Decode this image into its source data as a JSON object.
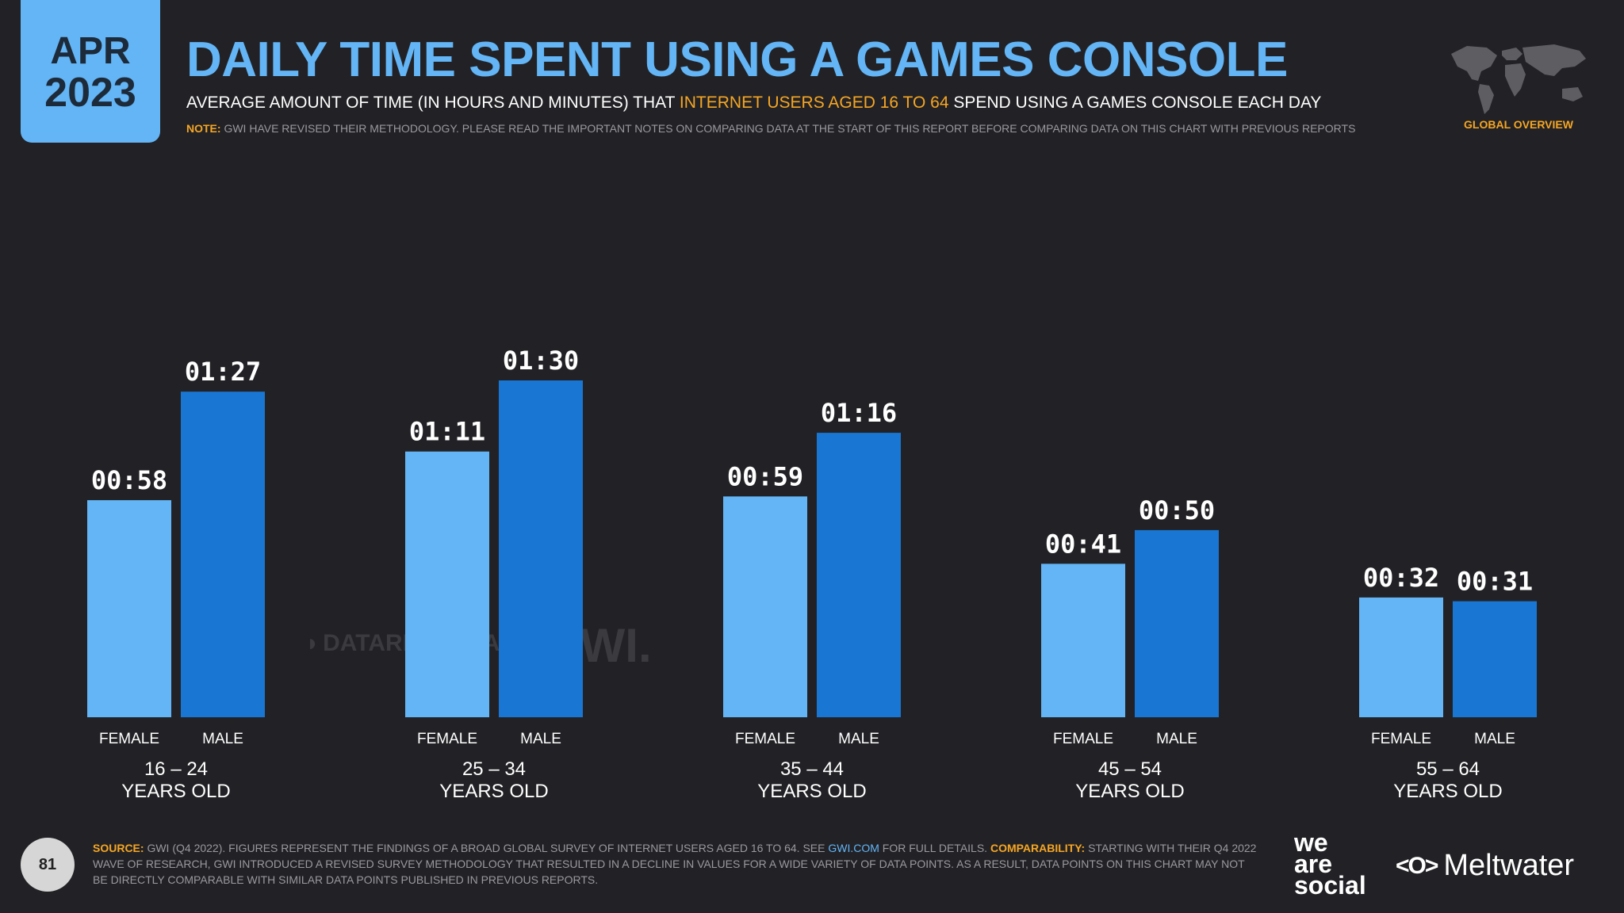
{
  "badge": {
    "month": "APR",
    "year": "2023"
  },
  "header": {
    "title": "DAILY TIME SPENT USING A GAMES CONSOLE",
    "subtitle_pre": "AVERAGE AMOUNT OF TIME (IN HOURS AND MINUTES) THAT ",
    "subtitle_highlight": "INTERNET USERS AGED 16 TO 64",
    "subtitle_post": " SPEND USING A GAMES CONSOLE EACH DAY",
    "note_label": "NOTE:",
    "note_text": "GWI HAVE REVISED THEIR METHODOLOGY. PLEASE READ THE IMPORTANT NOTES ON COMPARING DATA AT THE START OF THIS REPORT BEFORE COMPARING DATA ON THIS CHART WITH PREVIOUS REPORTS"
  },
  "region_label": "GLOBAL OVERVIEW",
  "watermark": {
    "datareportal": "DATAREPORTAL",
    "gwi": "GWI."
  },
  "chart_data": {
    "type": "bar",
    "title": "DAILY TIME SPENT USING A GAMES CONSOLE",
    "unit": "minutes",
    "categories": [
      "16 – 24|YEARS OLD",
      "25 – 34|YEARS OLD",
      "35 – 44|YEARS OLD",
      "45 – 54|YEARS OLD",
      "55 – 64|YEARS OLD"
    ],
    "series": [
      {
        "name": "FEMALE",
        "color": "#63b5f5",
        "values": [
          58,
          71,
          59,
          41,
          32
        ],
        "labels": [
          "00:58",
          "01:11",
          "00:59",
          "00:41",
          "00:32"
        ]
      },
      {
        "name": "MALE",
        "color": "#1976d2",
        "values": [
          87,
          90,
          76,
          50,
          31
        ],
        "labels": [
          "01:27",
          "01:30",
          "01:16",
          "00:50",
          "00:31"
        ]
      }
    ],
    "ylim": [
      0,
      90
    ],
    "grid": false,
    "legend": "none"
  },
  "footer": {
    "page_number": "81",
    "source_label": "SOURCE:",
    "source_text": " GWI (Q4 2022). FIGURES REPRESENT THE FINDINGS OF A BROAD GLOBAL SURVEY OF INTERNET USERS AGED 16 TO 64. SEE ",
    "source_link": "GWI.COM",
    "source_text2": " FOR FULL DETAILS. ",
    "comparability_label": "COMPARABILITY:",
    "comparability_text": " STARTING WITH THEIR Q4 2022 WAVE OF RESEARCH, GWI INTRODUCED A REVISED SURVEY METHODOLOGY THAT RESULTED IN A DECLINE IN VALUES FOR A WIDE VARIETY OF DATA POINTS. AS A RESULT, DATA POINTS ON THIS CHART MAY NOT BE DIRECTLY COMPARABLE WITH SIMILAR DATA POINTS PUBLISHED IN PREVIOUS REPORTS."
  },
  "logos": {
    "we_are_social": [
      "we",
      "are",
      "social"
    ],
    "meltwater_mark": "<O>",
    "meltwater": "Meltwater"
  }
}
